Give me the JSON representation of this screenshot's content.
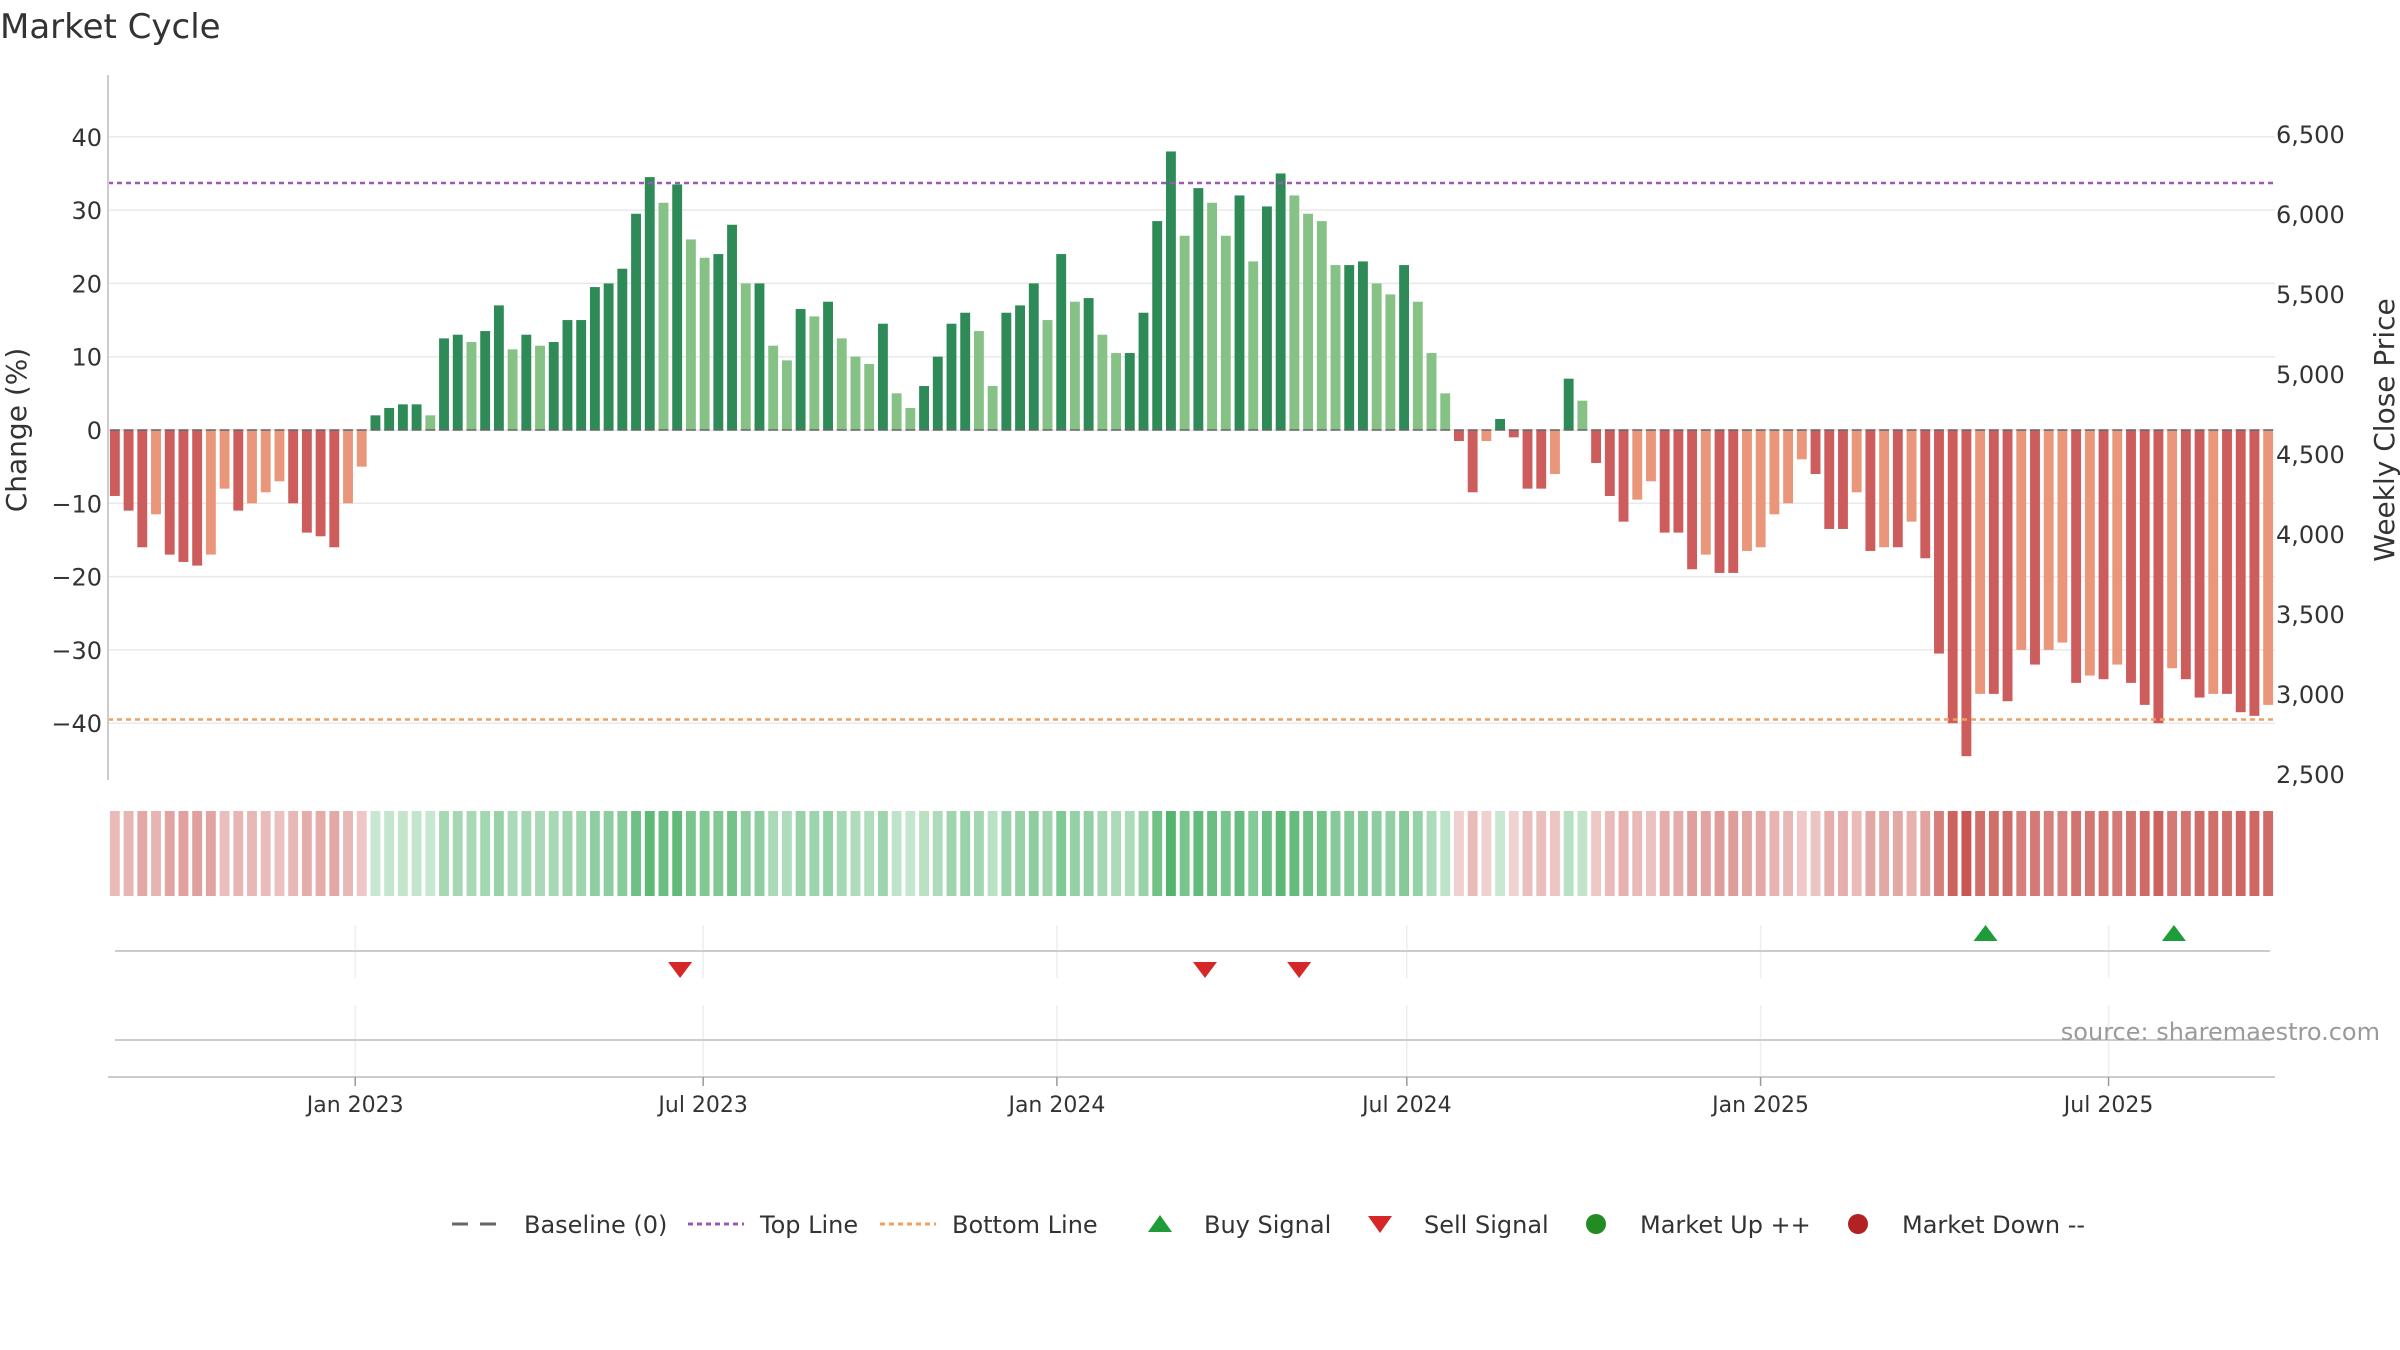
{
  "chart_data": {
    "type": "bar",
    "title": "Market Cycle",
    "ylabel": "Change (%)",
    "y2label": "Weekly Close Price",
    "ylim": [
      -48,
      49
    ],
    "y2lim": [
      2500,
      6500
    ],
    "yticks": [
      "40",
      "30",
      "20",
      "10",
      "0",
      "−10",
      "−20",
      "−30",
      "−40"
    ],
    "yticks_values": [
      40,
      30,
      20,
      10,
      0,
      -10,
      -20,
      -30,
      -40
    ],
    "y2ticks": [
      "6,500",
      "6,000",
      "5,500",
      "5,000",
      "4,500",
      "4,000",
      "3,500",
      "3,000",
      "2,500"
    ],
    "y2ticks_values": [
      6500,
      6000,
      5500,
      5000,
      4500,
      4000,
      3500,
      3000,
      2500
    ],
    "xticks": [
      "Jan 2023",
      "Jul 2023",
      "Jan 2024",
      "Jul 2024",
      "Jan 2025",
      "Jul 2025"
    ],
    "xticks_dates": [
      "2023-01-01",
      "2023-07-01",
      "2024-01-01",
      "2024-07-01",
      "2025-01-01",
      "2025-07-01"
    ],
    "start_date": "2022-08-29",
    "end_date": "2025-09-22",
    "top_line": 33.7,
    "bottom_line": -39.5,
    "grid": true,
    "legend_position": "bottom",
    "source": "source: sharemaestro.com",
    "values": [
      -9,
      -11,
      -16,
      -11.5,
      -17,
      -18,
      -18.5,
      -17,
      -8,
      -11,
      -10,
      -8.5,
      -7,
      -10,
      -14,
      -14.5,
      -16,
      -10,
      -5,
      2,
      3,
      3.5,
      3.5,
      2,
      12.5,
      13,
      12,
      13.5,
      17,
      11,
      13,
      11.5,
      12,
      15,
      15,
      19.5,
      20,
      22,
      29.5,
      34.5,
      31,
      33.5,
      26,
      23.5,
      24,
      28,
      20,
      20,
      11.5,
      9.5,
      16.5,
      15.5,
      17.5,
      12.5,
      10,
      9,
      14.5,
      5,
      3,
      6,
      10,
      14.5,
      16,
      13.5,
      6,
      16,
      17,
      20,
      15,
      24,
      17.5,
      18,
      13,
      10.5,
      10.5,
      16,
      28.5,
      38,
      26.5,
      33,
      31,
      26.5,
      32,
      23,
      30.5,
      35,
      32,
      29.5,
      28.5,
      22.5,
      22.5,
      23,
      20,
      18.5,
      22.5,
      17.5,
      10.5,
      5,
      -1.5,
      -8.5,
      -1.5,
      1.5,
      -1,
      -8,
      -8,
      -6,
      7,
      4,
      -4.5,
      -9,
      -12.5,
      -9.5,
      -7,
      -14,
      -14,
      -19,
      -17,
      -19.5,
      -19.5,
      -16.5,
      -16,
      -11.5,
      -10,
      -4,
      -6,
      -13.5,
      -13.5,
      -8.5,
      -16.5,
      -16,
      -16,
      -12.5,
      -17.5,
      -30.5,
      -40,
      -44.5,
      -36,
      -36,
      -37,
      -30,
      -32,
      -30,
      -29,
      -34.5,
      -33.5,
      -34,
      -32,
      -34.5,
      -37.5,
      -40,
      -32.5,
      -34,
      -36.5,
      -36,
      -36,
      -38.5,
      -39,
      -37.5
    ],
    "signals": {
      "buy": [
        "2025-04-28",
        "2025-08-04"
      ],
      "sell": [
        "2023-06-19",
        "2024-03-18",
        "2024-05-06"
      ]
    },
    "legend": [
      {
        "key": "baseline",
        "label": "Baseline (0)",
        "color": "#666666"
      },
      {
        "key": "top",
        "label": "Top Line",
        "color": "#9b59b6"
      },
      {
        "key": "bottom",
        "label": "Bottom Line",
        "color": "#f0a060"
      },
      {
        "key": "buy",
        "label": "Buy Signal",
        "color": "#1e9c3a"
      },
      {
        "key": "sell",
        "label": "Sell Signal",
        "color": "#d62728"
      },
      {
        "key": "up",
        "label": "Market Up ++",
        "color": "#228b22"
      },
      {
        "key": "down",
        "label": "Market Down --",
        "color": "#b22222"
      }
    ],
    "colors": {
      "pos_dark": "#2e8b57",
      "pos_light": "#86c186",
      "neg_dark": "#cd5c5c",
      "neg_light": "#e9967a",
      "top_line": "#9b59b6",
      "bottom_line": "#f0a060",
      "buy": "#1e9c3a",
      "sell": "#d62728"
    }
  }
}
